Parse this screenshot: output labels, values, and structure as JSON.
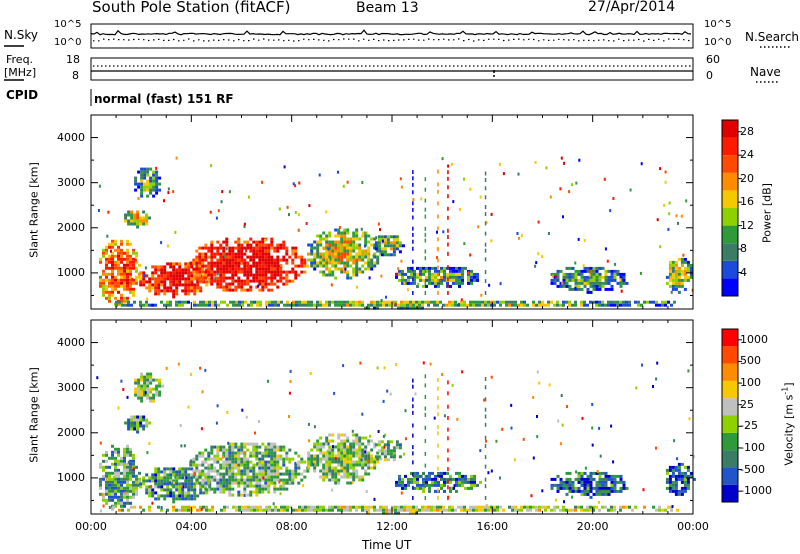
{
  "header": {
    "station": "South Pole Station (fitACF)",
    "beam": "Beam 13",
    "date": "27/Apr/2014"
  },
  "top_panels": {
    "nsky_label": "N.Sky",
    "nsky_ticks": [
      "10^5",
      "10^0"
    ],
    "nsearch_label": "N.Search",
    "nsearch_ticks": [
      "10^5",
      "10^0"
    ],
    "freq_label_1": "Freq.",
    "freq_label_2": "[MHz]",
    "freq_ticks": [
      "18",
      "8"
    ],
    "nave_label": "Nave",
    "nave_ticks": [
      "60",
      "0"
    ],
    "cpid_label": "CPID",
    "cpid_text": "normal (fast) 151 RF"
  },
  "colors": {
    "power": [
      "#0000ff",
      "#1c4bdc",
      "#3a7d64",
      "#2f9a3a",
      "#8fd000",
      "#f5c800",
      "#ff8c00",
      "#ff4a00",
      "#ff1a00",
      "#e00000"
    ],
    "velocity": [
      "#0000cc",
      "#2255cc",
      "#3a7d64",
      "#2f9a3a",
      "#8fd000",
      "#bfbfbf",
      "#f5c800",
      "#ff8c00",
      "#ff4a00",
      "#ff0000"
    ]
  },
  "chart_data": [
    {
      "type": "heatmap",
      "ylabel": "Slant Range [km]",
      "xlabel": "Time UT",
      "x_ticks": [
        "00:00",
        "04:00",
        "08:00",
        "12:00",
        "16:00",
        "20:00",
        "00:00"
      ],
      "xlim": [
        0,
        24
      ],
      "ylim": [
        200,
        4500
      ],
      "y_ticks": [
        "1000",
        "2000",
        "3000",
        "4000"
      ],
      "y_tick_values": [
        1000,
        2000,
        3000,
        4000
      ],
      "colorbar": {
        "label": "Power [dB]",
        "ticks": [
          "4",
          "8",
          "12",
          "16",
          "20",
          "24",
          "28"
        ],
        "tick_values": [
          4,
          8,
          12,
          16,
          20,
          24,
          28
        ],
        "range": [
          0,
          30
        ]
      },
      "regions": [
        {
          "t": [
            0.2,
            1.9
          ],
          "r": [
            300,
            1800
          ],
          "level": 0.55
        },
        {
          "t": [
            1.2,
            2.3
          ],
          "r": [
            2050,
            2450
          ],
          "level": 0.35
        },
        {
          "t": [
            1.6,
            2.8
          ],
          "r": [
            2700,
            3400
          ],
          "level": 0.12
        },
        {
          "t": [
            1.8,
            4.8
          ],
          "r": [
            500,
            1300
          ],
          "level": 0.7
        },
        {
          "t": [
            3.8,
            8.6
          ],
          "r": [
            600,
            1850
          ],
          "level": 0.78
        },
        {
          "t": [
            8.5,
            11.5
          ],
          "r": [
            900,
            2050
          ],
          "level": 0.3
        },
        {
          "t": [
            11.2,
            12.4
          ],
          "r": [
            1400,
            1900
          ],
          "level": 0.2
        },
        {
          "t": [
            12.0,
            15.5
          ],
          "r": [
            700,
            1200
          ],
          "level": 0.15
        },
        {
          "t": [
            18.2,
            21.4
          ],
          "r": [
            600,
            1200
          ],
          "level": 0.12
        },
        {
          "t": [
            22.8,
            24.0
          ],
          "r": [
            600,
            1400
          ],
          "level": 0.25
        },
        {
          "t": [
            0.0,
            24.0
          ],
          "r": [
            250,
            450
          ],
          "level": 0.2
        }
      ]
    },
    {
      "type": "heatmap",
      "ylabel": "Slant Range [km]",
      "xlabel": "Time UT",
      "x_ticks": [
        "00:00",
        "04:00",
        "08:00",
        "12:00",
        "16:00",
        "20:00",
        "00:00"
      ],
      "xlim": [
        0,
        24
      ],
      "ylim": [
        200,
        4500
      ],
      "y_ticks": [
        "1000",
        "2000",
        "3000",
        "4000"
      ],
      "y_tick_values": [
        1000,
        2000,
        3000,
        4000
      ],
      "colorbar": {
        "label": "Velocity [m s^-1]",
        "ticks": [
          "1000",
          "500",
          "100",
          "25",
          "-25",
          "-100",
          "-500",
          "-1000"
        ],
        "tick_values": [
          1000,
          500,
          100,
          25,
          -25,
          -100,
          -500,
          -1000
        ]
      },
      "regions": [
        {
          "t": [
            0.2,
            1.9
          ],
          "r": [
            300,
            1800
          ],
          "level": 0.35
        },
        {
          "t": [
            1.2,
            2.3
          ],
          "r": [
            2050,
            2450
          ],
          "level": 0.3
        },
        {
          "t": [
            1.6,
            2.8
          ],
          "r": [
            2700,
            3400
          ],
          "level": 0.45
        },
        {
          "t": [
            1.8,
            4.8
          ],
          "r": [
            500,
            1300
          ],
          "level": 0.3
        },
        {
          "t": [
            3.8,
            8.6
          ],
          "r": [
            600,
            1850
          ],
          "level": 0.4
        },
        {
          "t": [
            8.5,
            11.5
          ],
          "r": [
            900,
            2050
          ],
          "level": 0.45
        },
        {
          "t": [
            11.2,
            12.4
          ],
          "r": [
            1400,
            1900
          ],
          "level": 0.4
        },
        {
          "t": [
            12.0,
            15.5
          ],
          "r": [
            700,
            1200
          ],
          "level": 0.25
        },
        {
          "t": [
            18.2,
            21.4
          ],
          "r": [
            600,
            1200
          ],
          "level": 0.2
        },
        {
          "t": [
            22.8,
            24.0
          ],
          "r": [
            600,
            1400
          ],
          "level": 0.2
        },
        {
          "t": [
            0.0,
            24.0
          ],
          "r": [
            250,
            450
          ],
          "level": 0.5
        }
      ]
    }
  ]
}
